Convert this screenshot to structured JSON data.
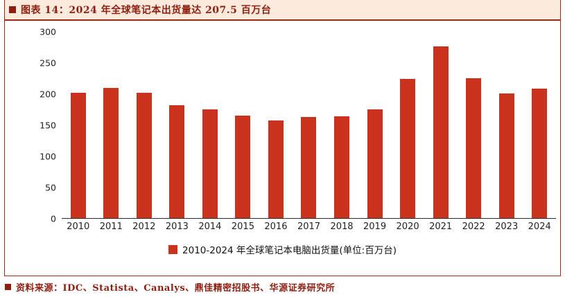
{
  "header": {
    "title": "图表 14：2024 年全球笔记本出货量达 207.5 百万台"
  },
  "chart_data": {
    "type": "bar",
    "title": "2024 年全球笔记本出货量达 207.5 百万台",
    "categories": [
      "2010",
      "2011",
      "2012",
      "2013",
      "2014",
      "2015",
      "2016",
      "2017",
      "2018",
      "2019",
      "2020",
      "2021",
      "2022",
      "2023",
      "2024"
    ],
    "values": [
      201,
      209,
      201,
      181,
      175,
      164,
      157,
      162,
      163,
      174,
      223,
      276,
      224,
      200,
      207.5
    ],
    "xlabel": "",
    "ylabel": "",
    "ylim": [
      0,
      300
    ],
    "yticks": [
      0,
      50,
      100,
      150,
      200,
      250,
      300
    ],
    "grid": false,
    "legend_position": "bottom",
    "legend": "2010-2024 年全球笔记本电脑出货量(单位:百万台)"
  },
  "footer": {
    "source": "资料来源：IDC、Statista、Canalys、鼎佳精密招股书、华源证券研究所"
  },
  "colors": {
    "bar_red": "#c9331d",
    "title_dark_red": "#8e1f10",
    "rule_red": "#9c2c17",
    "header_background": "#fcebdd",
    "axis_text": "#1f1f1f"
  }
}
